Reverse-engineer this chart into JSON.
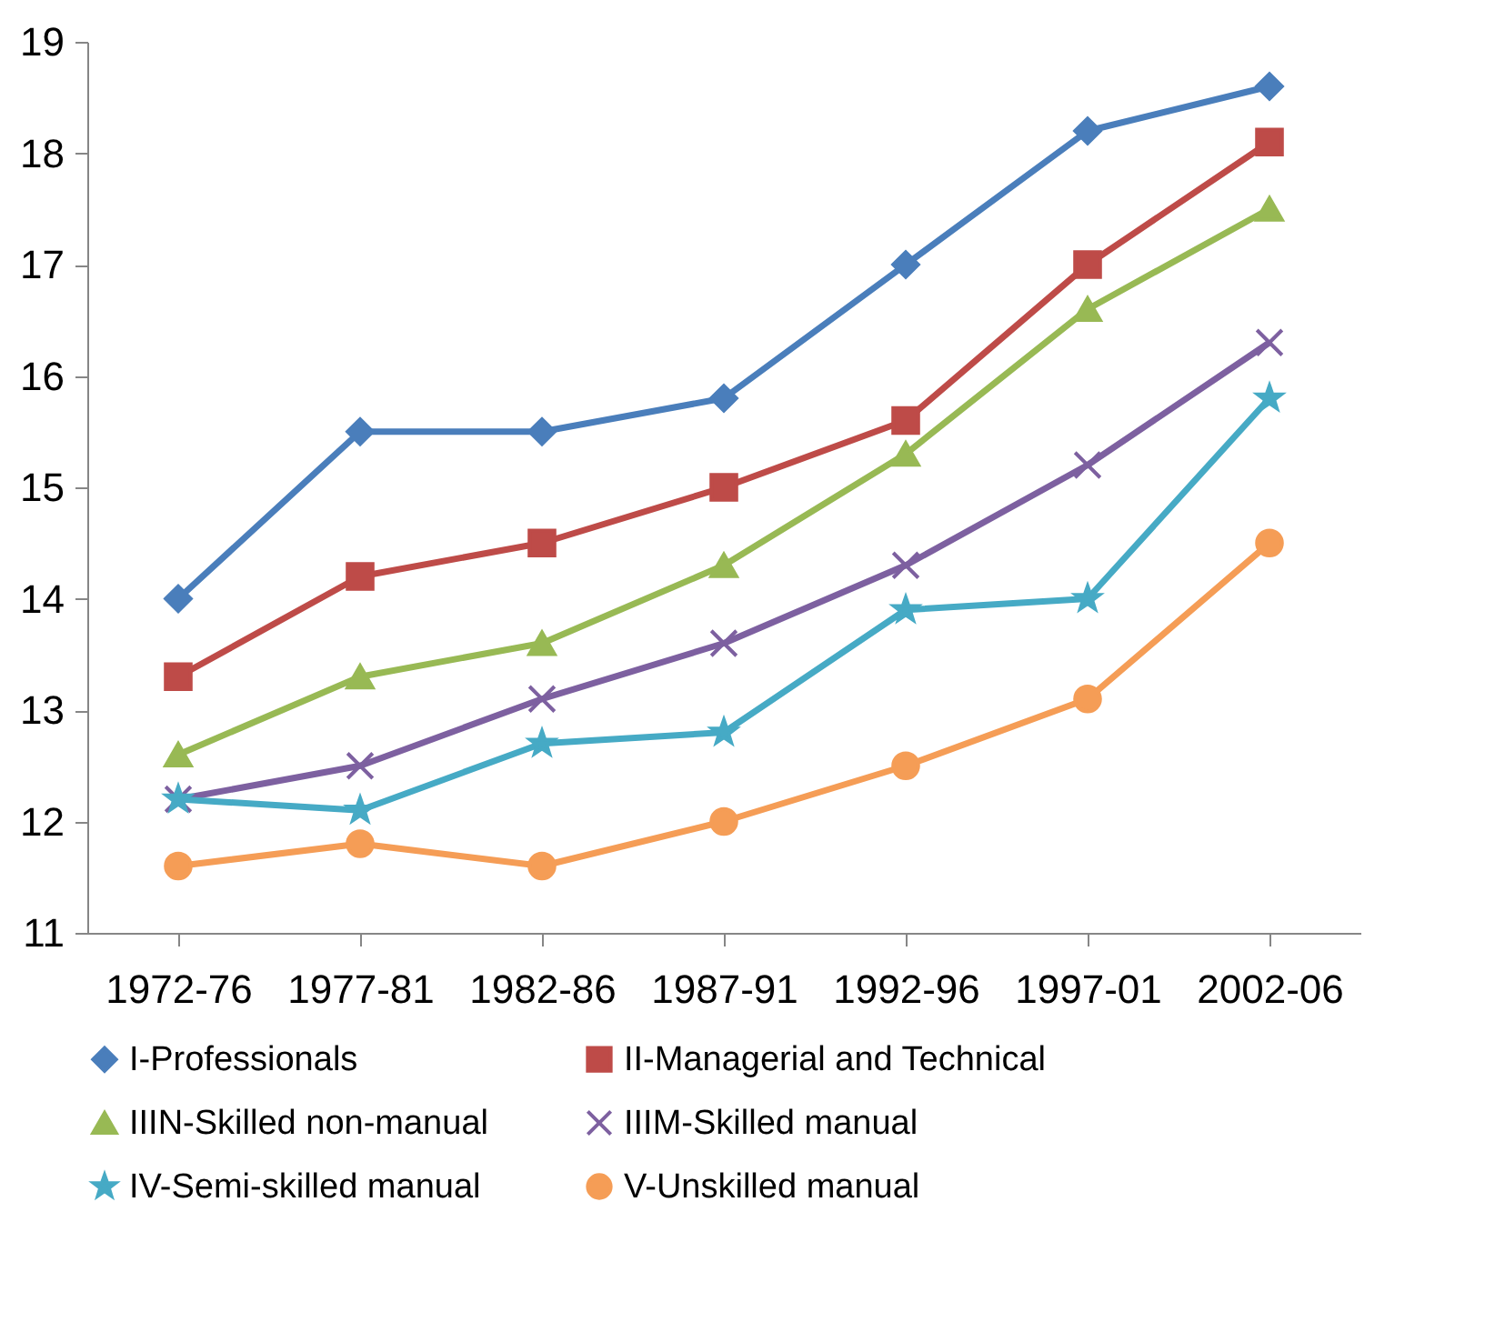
{
  "chart_data": {
    "type": "line",
    "categories": [
      "1972-76",
      "1977-81",
      "1982-86",
      "1987-91",
      "1992-96",
      "1997-01",
      "2002-06"
    ],
    "ylim": [
      11,
      19
    ],
    "yticks": [
      11,
      12,
      13,
      14,
      15,
      16,
      17,
      18,
      19
    ],
    "legend": "bottom",
    "series": [
      {
        "name": "I-Professionals",
        "color": "#4a7ebb",
        "marker": "diamond",
        "values": [
          14.0,
          15.5,
          15.5,
          15.8,
          17.0,
          18.2,
          18.6
        ]
      },
      {
        "name": "II-Managerial and Technical",
        "color": "#be4b48",
        "marker": "square",
        "values": [
          13.3,
          14.2,
          14.5,
          15.0,
          15.6,
          17.0,
          18.1
        ]
      },
      {
        "name": "IIIN-Skilled non-manual",
        "color": "#98b954",
        "marker": "triangle",
        "values": [
          12.6,
          13.3,
          13.6,
          14.3,
          15.3,
          16.6,
          17.5
        ]
      },
      {
        "name": "IIIM-Skilled manual",
        "color": "#7d60a0",
        "marker": "cross",
        "values": [
          12.2,
          12.5,
          13.1,
          13.6,
          14.3,
          15.2,
          16.3
        ]
      },
      {
        "name": "IV-Semi-skilled manual",
        "color": "#46aac5",
        "marker": "star",
        "values": [
          12.2,
          12.1,
          12.7,
          12.8,
          13.9,
          14.0,
          15.8
        ]
      },
      {
        "name": "V-Unskilled manual",
        "color": "#f59d56",
        "marker": "circle",
        "values": [
          11.6,
          11.8,
          11.6,
          12.0,
          12.5,
          13.1,
          14.5
        ]
      }
    ]
  }
}
